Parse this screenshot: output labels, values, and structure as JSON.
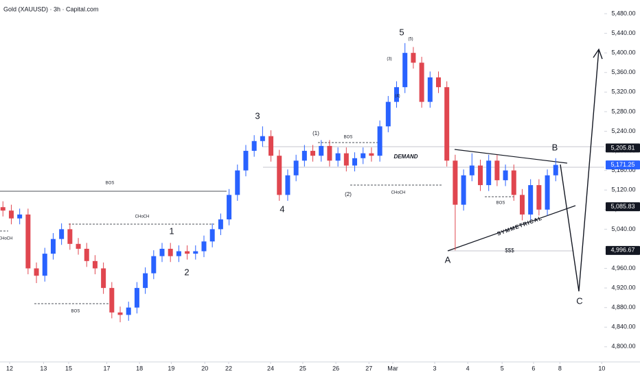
{
  "header": {
    "title": "Gold (XAUUSD) · 3h · Capital.com"
  },
  "chart_data": {
    "type": "candlestick",
    "up_color": "#2962ff",
    "down_color": "#e0464f",
    "xlim": [
      -0.7,
      143.6
    ],
    "ylim": [
      4769,
      5508
    ],
    "xticks": [
      {
        "value": 1.6,
        "label": "12"
      },
      {
        "value": 9.7,
        "label": "13"
      },
      {
        "value": 15.7,
        "label": "15"
      },
      {
        "value": 24.8,
        "label": "17"
      },
      {
        "value": 32.6,
        "label": "18"
      },
      {
        "value": 40.2,
        "label": "19"
      },
      {
        "value": 48.2,
        "label": "20"
      },
      {
        "value": 53.9,
        "label": "22"
      },
      {
        "value": 63.9,
        "label": "24"
      },
      {
        "value": 71.6,
        "label": "25"
      },
      {
        "value": 79.5,
        "label": "26"
      },
      {
        "value": 87.4,
        "label": "27"
      },
      {
        "value": 93.1,
        "label": "Mar"
      },
      {
        "value": 103.1,
        "label": "3"
      },
      {
        "value": 111,
        "label": "4"
      },
      {
        "value": 119.2,
        "label": "5"
      },
      {
        "value": 126.7,
        "label": "6"
      },
      {
        "value": 133,
        "label": "8"
      },
      {
        "value": 143,
        "label": "10"
      }
    ],
    "yticks": [
      {
        "value": 4800,
        "label": "4,800.00"
      },
      {
        "value": 4840,
        "label": "4,840.00"
      },
      {
        "value": 4880,
        "label": "4,880.00"
      },
      {
        "value": 4920,
        "label": "4,920.00"
      },
      {
        "value": 4960,
        "label": "4,960.00"
      },
      {
        "value": 5000,
        "label": "5,000.00"
      },
      {
        "value": 5040,
        "label": "5,040.00"
      },
      {
        "value": 5080,
        "label": "5,080.00"
      },
      {
        "value": 5120,
        "label": "5,120.00"
      },
      {
        "value": 5160,
        "label": "5,160.00"
      },
      {
        "value": 5200,
        "label": "5,200.00"
      },
      {
        "value": 5240,
        "label": "5,240.00"
      },
      {
        "value": 5280,
        "label": "5,280.00"
      },
      {
        "value": 5320,
        "label": "5,320.00"
      },
      {
        "value": 5360,
        "label": "5,360.00"
      },
      {
        "value": 5400,
        "label": "5,400.00"
      },
      {
        "value": 5440,
        "label": "5,440.00"
      },
      {
        "value": 5480,
        "label": "5,480.00"
      }
    ],
    "x": [
      0,
      2,
      4,
      6,
      8,
      10,
      12,
      14,
      16,
      18,
      20,
      22,
      24,
      26,
      28,
      30,
      32,
      34,
      36,
      38,
      40,
      42,
      44,
      46,
      48,
      50,
      52,
      54,
      56,
      58,
      60,
      62,
      64,
      66,
      68,
      70,
      72,
      74,
      76,
      78,
      80,
      82,
      84,
      86,
      88,
      90,
      92,
      94,
      96,
      98,
      100,
      102,
      104,
      106,
      108,
      110,
      112,
      114,
      116,
      118,
      120,
      122,
      124,
      126,
      128,
      130,
      132
    ],
    "open": [
      5085,
      5078,
      5062,
      5070,
      4960,
      4945,
      4990,
      5020,
      5040,
      5010,
      5000,
      4975,
      4960,
      4920,
      4870,
      4865,
      4880,
      4920,
      4950,
      4985,
      5000,
      4985,
      4995,
      4990,
      4995,
      5015,
      5040,
      5060,
      5110,
      5160,
      5200,
      5220,
      5230,
      5190,
      5110,
      5150,
      5180,
      5200,
      5190,
      5210,
      5180,
      5195,
      5170,
      5185,
      5195,
      5190,
      5250,
      5300,
      5330,
      5400,
      5380,
      5300,
      5350,
      5330,
      5180,
      5090,
      5150,
      5170,
      5130,
      5180,
      5140,
      5160,
      5110,
      5070,
      5130,
      5080,
      5150
    ],
    "high": [
      5097,
      5090,
      5082,
      5082,
      4972,
      5002,
      5032,
      5052,
      5052,
      5022,
      5012,
      4987,
      4972,
      4932,
      4882,
      4892,
      4932,
      4962,
      4997,
      5012,
      5012,
      5007,
      5007,
      5007,
      5027,
      5052,
      5072,
      5122,
      5172,
      5212,
      5232,
      5250,
      5242,
      5202,
      5162,
      5192,
      5212,
      5212,
      5222,
      5222,
      5207,
      5207,
      5197,
      5207,
      5207,
      5262,
      5312,
      5342,
      5420,
      5412,
      5392,
      5362,
      5362,
      5342,
      5192,
      5162,
      5195,
      5182,
      5192,
      5192,
      5172,
      5172,
      5122,
      5142,
      5142,
      5162,
      5185
    ],
    "low": [
      5066,
      5050,
      5050,
      4948,
      4930,
      4933,
      4978,
      5008,
      4998,
      4988,
      4963,
      4948,
      4908,
      4858,
      4850,
      4853,
      4868,
      4908,
      4938,
      4973,
      4973,
      4973,
      4978,
      4978,
      4983,
      5003,
      5028,
      5048,
      5098,
      5148,
      5188,
      5208,
      5178,
      5098,
      5098,
      5138,
      5168,
      5178,
      5178,
      5168,
      5168,
      5158,
      5158,
      5173,
      5178,
      5178,
      5238,
      5288,
      5318,
      5368,
      5288,
      5288,
      5318,
      5168,
      4997,
      5078,
      5138,
      5118,
      5118,
      5128,
      5128,
      5098,
      5058,
      5058,
      5068,
      5068,
      5138
    ],
    "close": [
      5078,
      5062,
      5070,
      4960,
      4945,
      4990,
      5020,
      5040,
      5010,
      5000,
      4975,
      4960,
      4920,
      4870,
      4865,
      4880,
      4920,
      4950,
      4985,
      5000,
      4985,
      4995,
      4990,
      4995,
      5015,
      5040,
      5060,
      5110,
      5160,
      5200,
      5220,
      5230,
      5190,
      5110,
      5150,
      5180,
      5200,
      5190,
      5210,
      5180,
      5195,
      5170,
      5185,
      5195,
      5190,
      5250,
      5300,
      5330,
      5400,
      5380,
      5300,
      5350,
      5330,
      5180,
      5090,
      5150,
      5170,
      5130,
      5180,
      5140,
      5160,
      5110,
      5070,
      5130,
      5080,
      5150,
      5171.25
    ],
    "price_labels": [
      {
        "value": 5205.81,
        "label": "5,205.81"
      },
      {
        "value": 5171.25,
        "label": "5,171.25"
      },
      {
        "value": 5085.83,
        "label": "5,085.83"
      },
      {
        "value": 4996.67,
        "label": "4,996.67"
      }
    ],
    "annotations": [
      "5",
      "(5)",
      "(3)",
      "(4)",
      "3",
      "(1)",
      "BOS",
      "4",
      "1",
      "2",
      "(2)",
      "CHoCH",
      "DEMAND",
      "BOS",
      "CHoCH",
      "CHoCH",
      "BOS",
      "BOS",
      "SYMMETRICAL",
      "$$$",
      "A",
      "B",
      "C"
    ]
  }
}
